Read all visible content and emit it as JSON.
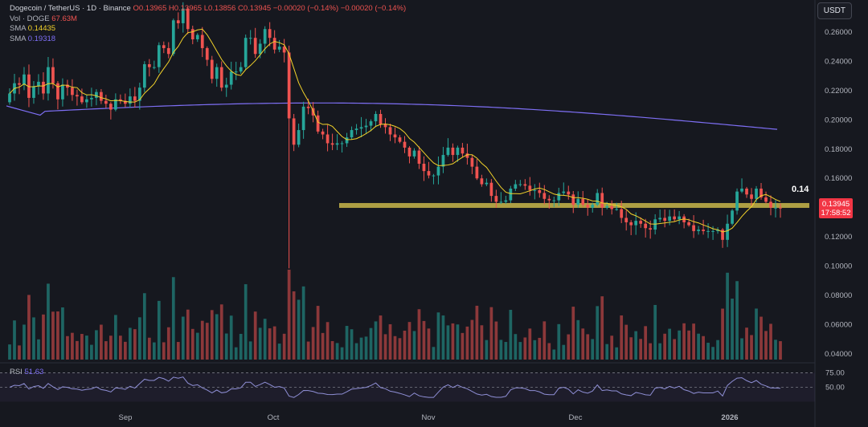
{
  "legend": {
    "symbol": "Dogecoin / TetherUS · 1D · Binance",
    "ohlc": "O0.13965 H0.13965 L0.13856 C0.13945 −0.00020 (−0.14%)",
    "change_extra": "−0.00020 (−0.14%)",
    "vol_label": "Vol · DOGE",
    "vol_value": "67.63M",
    "sma_fast_label": "SMA",
    "sma_fast_value": "0.14435",
    "sma_slow_label": "SMA",
    "sma_slow_value": "0.19318"
  },
  "currency_button": "USDT",
  "price_tag": {
    "price": "0.13945",
    "countdown": "17:58:52"
  },
  "level_label": "0.14",
  "rsi": {
    "label": "RSI",
    "value": "51.63"
  },
  "colors": {
    "up": "#26a69a",
    "down": "#ef5350",
    "sma_fast": "#f2d22a",
    "sma_slow": "#7e6ff5",
    "level": "#c9b74a",
    "rsi": "#8f8fd6"
  },
  "chart_data": {
    "type": "candlestick",
    "symbol": "DOGE/USDT",
    "interval": "1D",
    "x_ticks": [
      "Sep",
      "Oct",
      "Nov",
      "Dec",
      "2026"
    ],
    "y_ticks": [
      "0.26000",
      "0.24000",
      "0.22000",
      "0.20000",
      "0.18000",
      "0.16000",
      "0.14000",
      "0.12000",
      "0.10000",
      "0.08000",
      "0.06000",
      "0.04000"
    ],
    "ylim": [
      0.034,
      0.272
    ],
    "horizontal_level": 0.1415,
    "close_series": [
      0.218,
      0.225,
      0.224,
      0.231,
      0.215,
      0.223,
      0.226,
      0.218,
      0.236,
      0.225,
      0.214,
      0.224,
      0.222,
      0.217,
      0.216,
      0.212,
      0.214,
      0.215,
      0.219,
      0.213,
      0.211,
      0.207,
      0.214,
      0.213,
      0.211,
      0.216,
      0.213,
      0.222,
      0.238,
      0.236,
      0.236,
      0.251,
      0.249,
      0.245,
      0.268,
      0.266,
      0.276,
      0.262,
      0.255,
      0.258,
      0.249,
      0.241,
      0.228,
      0.236,
      0.222,
      0.224,
      0.233,
      0.233,
      0.236,
      0.256,
      0.256,
      0.245,
      0.252,
      0.262,
      0.256,
      0.248,
      0.25,
      0.246,
      0.201,
      0.183,
      0.193,
      0.209,
      0.208,
      0.203,
      0.192,
      0.19,
      0.184,
      0.183,
      0.184,
      0.184,
      0.188,
      0.193,
      0.194,
      0.195,
      0.196,
      0.199,
      0.204,
      0.197,
      0.195,
      0.19,
      0.188,
      0.185,
      0.181,
      0.175,
      0.179,
      0.17,
      0.165,
      0.162,
      0.162,
      0.168,
      0.176,
      0.181,
      0.176,
      0.181,
      0.177,
      0.174,
      0.168,
      0.16,
      0.156,
      0.157,
      0.148,
      0.144,
      0.144,
      0.145,
      0.153,
      0.156,
      0.156,
      0.155,
      0.152,
      0.152,
      0.15,
      0.146,
      0.145,
      0.145,
      0.15,
      0.151,
      0.149,
      0.142,
      0.146,
      0.142,
      0.14,
      0.142,
      0.15,
      0.14,
      0.141,
      0.139,
      0.139,
      0.133,
      0.13,
      0.128,
      0.131,
      0.129,
      0.126,
      0.125,
      0.132,
      0.133,
      0.131,
      0.134,
      0.132,
      0.134,
      0.13,
      0.128,
      0.124,
      0.125,
      0.124,
      0.124,
      0.124,
      0.125,
      0.118,
      0.129,
      0.138,
      0.151,
      0.153,
      0.149,
      0.146,
      0.153,
      0.147,
      0.144,
      0.14,
      0.14,
      0.13945
    ],
    "sma_fast": {
      "label": "SMA",
      "last": 0.14435
    },
    "sma_slow": {
      "label": "SMA",
      "last": 0.19318
    },
    "volume_unit": "DOGE",
    "volume_last": "67.63M",
    "rsi_levels": [
      75.0,
      50.0
    ],
    "rsi_last": 51.63
  }
}
